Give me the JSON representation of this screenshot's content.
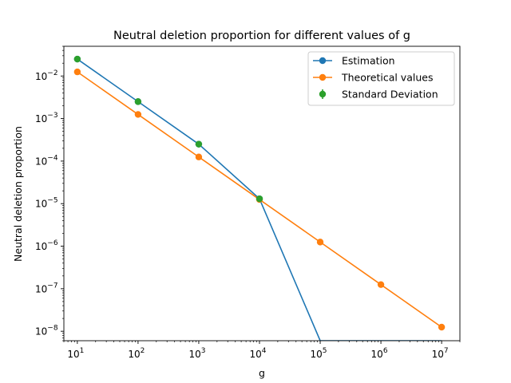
{
  "chart_data": {
    "type": "line",
    "title": "Neutral deletion proportion for different values of g",
    "xlabel": "g",
    "ylabel": "Neutral deletion proportion",
    "xscale": "log",
    "yscale": "log",
    "xlim": [
      6,
      20000000
    ],
    "ylim": [
      6e-09,
      0.05
    ],
    "x_ticks": [
      {
        "value": 10,
        "mantissa": "10",
        "exp": "1"
      },
      {
        "value": 100,
        "mantissa": "10",
        "exp": "2"
      },
      {
        "value": 1000,
        "mantissa": "10",
        "exp": "3"
      },
      {
        "value": 10000,
        "mantissa": "10",
        "exp": "4"
      },
      {
        "value": 100000,
        "mantissa": "10",
        "exp": "5"
      },
      {
        "value": 1000000,
        "mantissa": "10",
        "exp": "6"
      },
      {
        "value": 10000000,
        "mantissa": "10",
        "exp": "7"
      }
    ],
    "y_ticks": [
      {
        "value": 0.01,
        "mantissa": "10",
        "exp": "−2"
      },
      {
        "value": 0.001,
        "mantissa": "10",
        "exp": "−3"
      },
      {
        "value": 0.0001,
        "mantissa": "10",
        "exp": "−4"
      },
      {
        "value": 1e-05,
        "mantissa": "10",
        "exp": "−5"
      },
      {
        "value": 1e-06,
        "mantissa": "10",
        "exp": "−6"
      },
      {
        "value": 1e-07,
        "mantissa": "10",
        "exp": "−7"
      },
      {
        "value": 1e-08,
        "mantissa": "10",
        "exp": "−8"
      }
    ],
    "legend_position": "top-right",
    "series": [
      {
        "name": "Estimation",
        "color": "#1f77b4",
        "x": [
          10,
          100,
          1000,
          10000,
          100000,
          1000000,
          10000000
        ],
        "y": [
          0.025,
          0.0025,
          0.00025,
          1.3e-05,
          0,
          0,
          0
        ]
      },
      {
        "name": "Theoretical values",
        "color": "#ff7f0e",
        "x": [
          10,
          100,
          1000,
          10000,
          100000,
          1000000,
          10000000
        ],
        "y": [
          0.0125,
          0.00125,
          0.000125,
          1.25e-05,
          1.25e-06,
          1.25e-07,
          1.25e-08
        ]
      },
      {
        "name": "Standard Deviation",
        "color": "#2ca02c",
        "type": "errorbar",
        "x": [
          10,
          100,
          1000,
          10000
        ],
        "y": [
          0.025,
          0.0025,
          0.00025,
          1.3e-05
        ]
      }
    ]
  }
}
